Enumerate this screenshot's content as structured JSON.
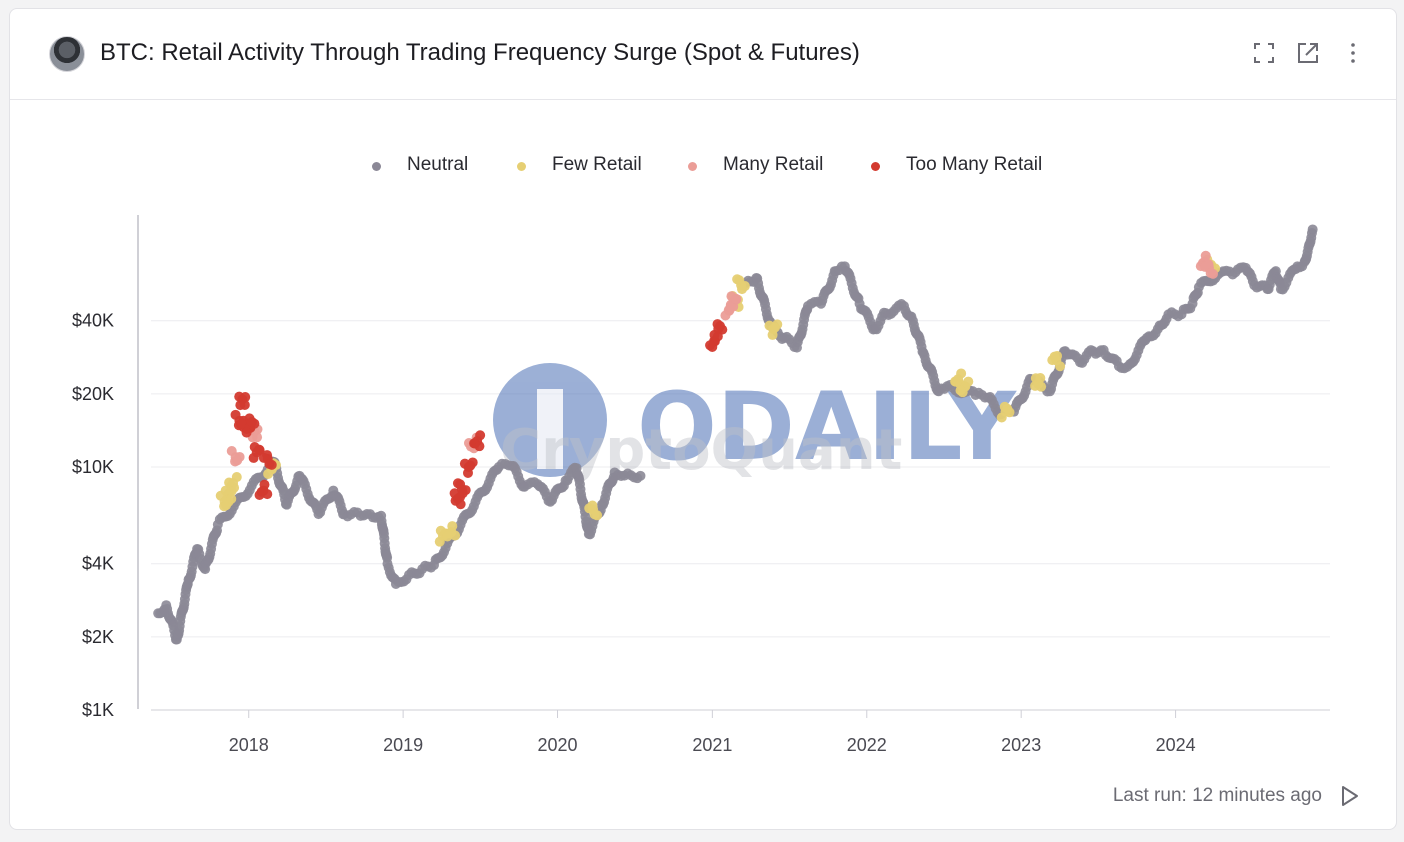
{
  "header": {
    "title": "BTC: Retail Activity Through Trading Frequency Surge (Spot & Futures)",
    "icons": [
      "expand-icon",
      "open-external-icon",
      "more-vertical-icon"
    ]
  },
  "footer": {
    "last_run": "Last run: 12 minutes ago",
    "icon": "play-icon"
  },
  "watermark": {
    "brand": "ODAILY",
    "subtext": "CryptoQuant"
  },
  "colors": {
    "neutral": "#8b8896",
    "few_retail": "#e6cf73",
    "many_retail": "#eb9d97",
    "too_many_retail": "#d33a2f",
    "watermark": "#4a6fb5"
  },
  "chart_data": {
    "type": "scatter",
    "title": "BTC: Retail Activity Through Trading Frequency Surge (Spot & Futures)",
    "y_scale": "log",
    "ylim": [
      1000,
      110000
    ],
    "y_ticks": [
      {
        "value": 1000,
        "label": "$1K"
      },
      {
        "value": 2000,
        "label": "$2K"
      },
      {
        "value": 4000,
        "label": "$4K"
      },
      {
        "value": 10000,
        "label": "$10K"
      },
      {
        "value": 20000,
        "label": "$20K"
      },
      {
        "value": 40000,
        "label": "$40K"
      }
    ],
    "xlim": [
      "2017-05-15",
      "2024-12-31"
    ],
    "x_ticks": [
      {
        "value": "2018-01-01",
        "label": "2018"
      },
      {
        "value": "2019-01-01",
        "label": "2019"
      },
      {
        "value": "2020-01-01",
        "label": "2020"
      },
      {
        "value": "2021-01-01",
        "label": "2021"
      },
      {
        "value": "2022-01-01",
        "label": "2022"
      },
      {
        "value": "2023-01-01",
        "label": "2023"
      },
      {
        "value": "2024-01-01",
        "label": "2024"
      }
    ],
    "legend_position": "top-center",
    "grid": "horizontal",
    "series": [
      {
        "name": "Neutral",
        "color": "#8b8896",
        "points": [
          [
            "2017-06-01",
            2500
          ],
          [
            "2017-06-20",
            2700
          ],
          [
            "2017-07-15",
            1950
          ],
          [
            "2017-08-10",
            3300
          ],
          [
            "2017-09-01",
            4600
          ],
          [
            "2017-09-20",
            3800
          ],
          [
            "2017-10-20",
            5800
          ],
          [
            "2018-03-01",
            10500
          ],
          [
            "2018-04-01",
            7000
          ],
          [
            "2018-05-01",
            9200
          ],
          [
            "2018-06-15",
            6400
          ],
          [
            "2018-07-20",
            8000
          ],
          [
            "2018-08-15",
            6400
          ],
          [
            "2018-09-15",
            6500
          ],
          [
            "2018-10-15",
            6400
          ],
          [
            "2018-11-10",
            6300
          ],
          [
            "2018-11-25",
            4000
          ],
          [
            "2018-12-15",
            3300
          ],
          [
            "2019-01-15",
            3600
          ],
          [
            "2019-02-15",
            3800
          ],
          [
            "2019-03-15",
            3950
          ],
          [
            "2019-08-15",
            10000
          ],
          [
            "2019-09-15",
            10100
          ],
          [
            "2019-10-15",
            8300
          ],
          [
            "2019-11-15",
            8500
          ],
          [
            "2019-12-15",
            7200
          ],
          [
            "2020-01-20",
            8800
          ],
          [
            "2020-02-15",
            9900
          ],
          [
            "2020-03-15",
            5300
          ],
          [
            "2020-04-15",
            7000
          ],
          [
            "2020-05-15",
            9500
          ],
          [
            "2020-06-15",
            9400
          ],
          [
            "2020-07-15",
            9200
          ],
          [
            "2021-03-20",
            57000
          ],
          [
            "2021-04-15",
            60000
          ],
          [
            "2021-05-20",
            38000
          ],
          [
            "2021-06-20",
            34000
          ],
          [
            "2021-07-20",
            31000
          ],
          [
            "2021-08-15",
            46000
          ],
          [
            "2021-09-15",
            47000
          ],
          [
            "2021-10-20",
            64000
          ],
          [
            "2021-11-10",
            67000
          ],
          [
            "2021-12-15",
            47000
          ],
          [
            "2022-01-20",
            37000
          ],
          [
            "2022-02-15",
            43000
          ],
          [
            "2022-03-30",
            46000
          ],
          [
            "2022-04-20",
            40000
          ],
          [
            "2022-05-15",
            29500
          ],
          [
            "2022-06-20",
            20500
          ],
          [
            "2022-07-10",
            21500
          ],
          [
            "2022-09-15",
            19800
          ],
          [
            "2022-10-15",
            19300
          ],
          [
            "2022-11-15",
            16500
          ],
          [
            "2022-12-15",
            16900
          ],
          [
            "2023-01-25",
            23000
          ],
          [
            "2023-03-10",
            20500
          ],
          [
            "2023-04-15",
            30000
          ],
          [
            "2023-05-20",
            27000
          ],
          [
            "2023-06-20",
            30000
          ],
          [
            "2023-07-15",
            30300
          ],
          [
            "2023-08-20",
            26000
          ],
          [
            "2023-09-15",
            26500
          ],
          [
            "2023-10-25",
            34000
          ],
          [
            "2023-11-20",
            37000
          ],
          [
            "2023-12-15",
            42500
          ],
          [
            "2024-01-15",
            42500
          ],
          [
            "2024-02-10",
            47000
          ],
          [
            "2024-02-25",
            55000
          ],
          [
            "2024-04-15",
            63000
          ],
          [
            "2024-05-15",
            62000
          ],
          [
            "2024-06-15",
            66000
          ],
          [
            "2024-07-05",
            56000
          ],
          [
            "2024-08-05",
            54000
          ],
          [
            "2024-08-25",
            64000
          ],
          [
            "2024-09-06",
            54000
          ],
          [
            "2024-10-15",
            67000
          ],
          [
            "2024-11-01",
            70000
          ],
          [
            "2024-11-10",
            80000
          ],
          [
            "2024-11-20",
            95000
          ]
        ]
      },
      {
        "name": "Few Retail",
        "color": "#e6cf73",
        "points": [
          [
            "2017-11-05",
            7200
          ],
          [
            "2017-11-15",
            7800
          ],
          [
            "2017-11-25",
            8600
          ],
          [
            "2018-02-25",
            9800
          ],
          [
            "2019-04-05",
            5200
          ],
          [
            "2019-04-25",
            5400
          ],
          [
            "2020-03-25",
            6700
          ],
          [
            "2021-02-25",
            48000
          ],
          [
            "2021-03-10",
            56000
          ],
          [
            "2021-05-25",
            37000
          ],
          [
            "2022-08-05",
            23000
          ],
          [
            "2022-08-20",
            21500
          ],
          [
            "2022-11-25",
            16900
          ],
          [
            "2023-02-10",
            22000
          ],
          [
            "2023-03-25",
            27500
          ],
          [
            "2024-03-25",
            68000
          ]
        ]
      },
      {
        "name": "Many Retail",
        "color": "#eb9d97",
        "points": [
          [
            "2017-12-01",
            11000
          ],
          [
            "2018-01-15",
            14000
          ],
          [
            "2019-06-15",
            12500
          ],
          [
            "2021-02-10",
            44000
          ],
          [
            "2021-02-20",
            48000
          ],
          [
            "2024-03-10",
            70000
          ],
          [
            "2024-03-20",
            66000
          ]
        ]
      },
      {
        "name": "Too Many Retail",
        "color": "#d33a2f",
        "points": [
          [
            "2017-12-10",
            15500
          ],
          [
            "2017-12-17",
            19000
          ],
          [
            "2017-12-25",
            15000
          ],
          [
            "2018-01-05",
            14500
          ],
          [
            "2018-01-20",
            11500
          ],
          [
            "2018-02-05",
            8000
          ],
          [
            "2018-02-15",
            10800
          ],
          [
            "2019-05-10",
            7400
          ],
          [
            "2019-05-20",
            8100
          ],
          [
            "2019-06-05",
            10000
          ],
          [
            "2019-06-25",
            12800
          ],
          [
            "2021-01-05",
            33000
          ],
          [
            "2021-01-15",
            37000
          ]
        ]
      }
    ]
  }
}
